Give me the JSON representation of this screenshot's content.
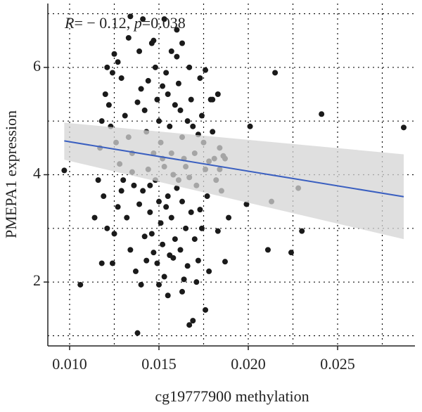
{
  "chart_data": {
    "type": "scatter",
    "x_label": "cg19777900 methylation",
    "y_label": "PMEPA1 expression",
    "annotation": {
      "r_label": "R",
      "r_value": "= − 0.12, ",
      "p_label": "p",
      "p_value": "=0.038"
    },
    "xlim": [
      0.00878,
      0.02933
    ],
    "ylim": [
      0.81,
      7.19
    ],
    "xticks": [
      {
        "value": 0.01,
        "label": "0.010"
      },
      {
        "value": 0.015,
        "label": "0.015"
      },
      {
        "value": 0.02,
        "label": "0.020"
      },
      {
        "value": 0.025,
        "label": "0.025"
      }
    ],
    "yticks": [
      2,
      4,
      6
    ],
    "x_minor_grid": [
      0.0125,
      0.0175,
      0.0225,
      0.0275
    ],
    "y_minor_grid": [
      1,
      3,
      5,
      7
    ],
    "grid": true,
    "point_color": "#1a1a1a",
    "line_color": "#3a5fc0",
    "band_color": "#d4d4d4",
    "fit": {
      "x": [
        0.0097,
        0.0287
      ],
      "y": [
        4.63,
        3.59
      ],
      "lower": [
        4.28,
        2.8
      ],
      "upper": [
        4.97,
        4.38
      ]
    },
    "x": [
      0.0097,
      0.0106,
      0.0114,
      0.0118,
      0.0124,
      0.0138,
      0.0167,
      0.0169,
      0.0176,
      0.0187,
      0.0199,
      0.0201,
      0.0211,
      0.0213,
      0.0215,
      0.0224,
      0.0228,
      0.023,
      0.0241,
      0.0287,
      0.0189,
      0.0183,
      0.0163,
      0.0155,
      0.0134,
      0.0141,
      0.0153,
      0.016,
      0.0125,
      0.0121,
      0.012,
      0.0122,
      0.0123,
      0.0126,
      0.0128,
      0.013,
      0.0119,
      0.0121,
      0.0125,
      0.0127,
      0.0129,
      0.0131,
      0.0133,
      0.0135,
      0.0136,
      0.0132,
      0.0134,
      0.0137,
      0.0139,
      0.014,
      0.0142,
      0.0143,
      0.0144,
      0.0141,
      0.0145,
      0.0146,
      0.0143,
      0.014,
      0.0147,
      0.0148,
      0.0149,
      0.015,
      0.0151,
      0.0152,
      0.0148,
      0.015,
      0.0151,
      0.0152,
      0.0149,
      0.0153,
      0.0154,
      0.0155,
      0.0156,
      0.0157,
      0.0158,
      0.0155,
      0.0157,
      0.0159,
      0.0156,
      0.016,
      0.0161,
      0.0162,
      0.0163,
      0.0164,
      0.0161,
      0.0163,
      0.0165,
      0.0162,
      0.0166,
      0.0167,
      0.0168,
      0.0169,
      0.017,
      0.0171,
      0.0168,
      0.017,
      0.0172,
      0.0173,
      0.0174,
      0.0175,
      0.0176,
      0.0177,
      0.0174,
      0.0178,
      0.0179,
      0.018,
      0.0181,
      0.0182,
      0.0183,
      0.0184,
      0.0186,
      0.0185,
      0.0118,
      0.0117,
      0.0116,
      0.0124,
      0.0127,
      0.0133,
      0.0146,
      0.0138,
      0.0144,
      0.0152,
      0.0159,
      0.0166,
      0.0172,
      0.0147,
      0.0153,
      0.0165,
      0.0135,
      0.0129,
      0.0139,
      0.0145,
      0.0154,
      0.016,
      0.0167,
      0.0173,
      0.0142,
      0.0147,
      0.0158,
      0.0164,
      0.0171,
      0.015,
      0.0157,
      0.0163,
      0.0176,
      0.018,
      0.0187,
      0.0178,
      0.0184
    ],
    "y": [
      4.08,
      1.95,
      3.2,
      2.35,
      2.35,
      1.05,
      1.2,
      1.28,
      1.48,
      2.38,
      3.45,
      4.9,
      2.6,
      3.5,
      5.9,
      2.55,
      3.75,
      2.95,
      5.13,
      4.88,
      3.2,
      2.95,
      1.82,
      1.75,
      6.95,
      6.9,
      6.9,
      6.7,
      6.25,
      6.0,
      5.5,
      5.3,
      4.9,
      4.6,
      4.2,
      3.9,
      3.6,
      3.0,
      2.9,
      3.4,
      5.8,
      5.1,
      4.7,
      4.4,
      3.8,
      3.2,
      2.6,
      2.2,
      6.3,
      5.6,
      5.2,
      4.8,
      4.1,
      3.7,
      3.3,
      2.9,
      2.4,
      1.95,
      6.5,
      6.0,
      5.4,
      5.0,
      4.6,
      4.3,
      3.9,
      3.5,
      3.1,
      2.7,
      2.35,
      2.1,
      5.9,
      5.5,
      4.9,
      4.4,
      4.0,
      3.6,
      3.2,
      2.8,
      2.5,
      6.2,
      5.7,
      5.2,
      4.7,
      4.3,
      3.9,
      3.5,
      3.0,
      2.6,
      2.3,
      6.0,
      5.4,
      4.9,
      4.4,
      3.8,
      3.3,
      2.8,
      2.4,
      5.8,
      5.1,
      4.6,
      4.1,
      3.6,
      3.0,
      2.2,
      5.4,
      4.8,
      4.3,
      3.9,
      5.5,
      4.5,
      4.35,
      3.7,
      5.0,
      4.5,
      3.9,
      5.9,
      6.1,
      6.55,
      6.45,
      5.35,
      5.75,
      5.65,
      5.3,
      5.0,
      4.75,
      4.4,
      4.15,
      4.15,
      4.05,
      3.7,
      3.45,
      3.8,
      3.4,
      3.75,
      3.95,
      3.35,
      2.85,
      2.55,
      2.45,
      2.05,
      2.0,
      1.95,
      6.3,
      6.45,
      5.95,
      5.4,
      4.3,
      4.25,
      4.1
    ]
  }
}
